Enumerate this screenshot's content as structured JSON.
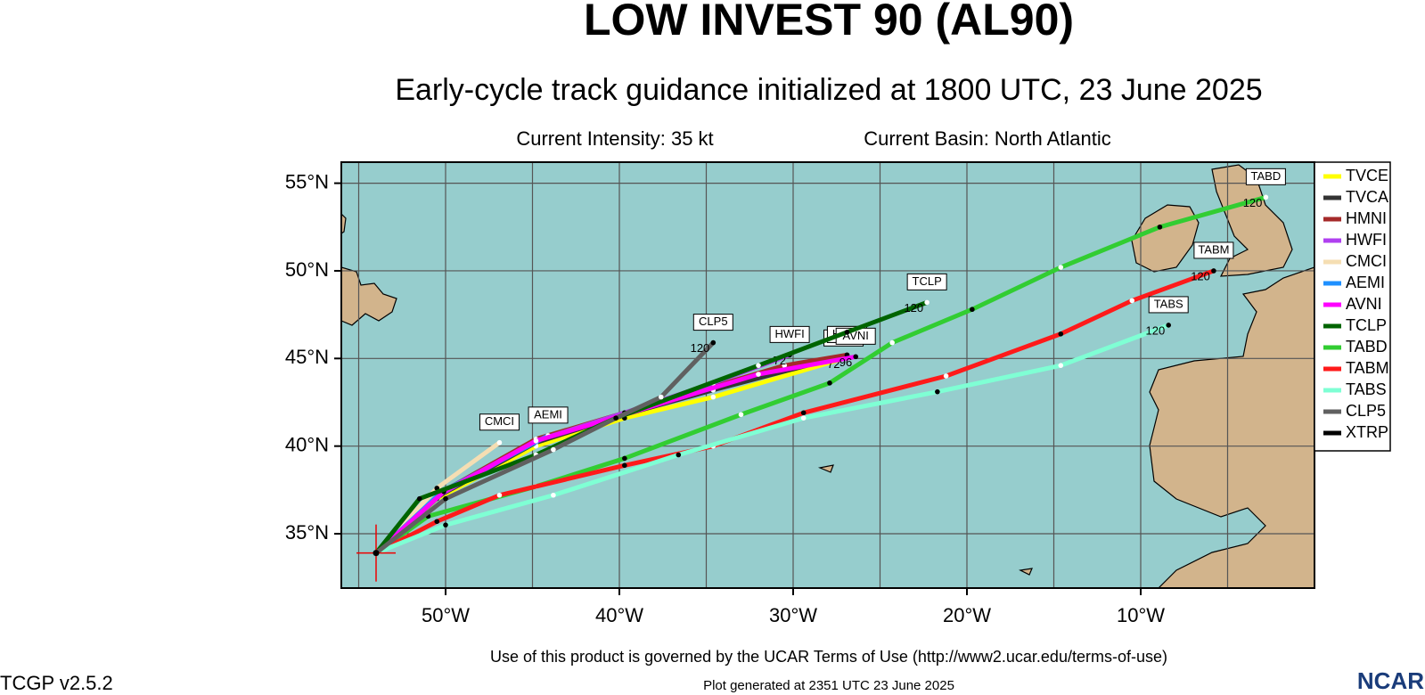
{
  "title": "LOW INVEST 90 (AL90)",
  "subtitle": "Early-cycle track guidance initialized at 1800 UTC, 23 June 2025",
  "intensity": "Current Intensity: 35 kt",
  "basin": "Current Basin: North Atlantic",
  "footer": {
    "terms": "Use of this product is governed by the UCAR Terms of Use (http://www2.ucar.edu/terms-of-use)",
    "generated": "Plot generated at 2351 UTC   23 June 2025",
    "version": "TCGP v2.5.2",
    "logo": "NCAR"
  },
  "map": {
    "xlim": [
      -56,
      0
    ],
    "ylim": [
      31.9,
      56.2
    ],
    "xticks": [
      {
        "value": -50,
        "label": "50°W"
      },
      {
        "value": -40,
        "label": "40°W"
      },
      {
        "value": -30,
        "label": "30°W"
      },
      {
        "value": -20,
        "label": "20°W"
      },
      {
        "value": -10,
        "label": "10°W"
      }
    ],
    "xminor": [
      -55,
      -45,
      -35,
      -25,
      -15,
      -5
    ],
    "yticks": [
      {
        "value": 35,
        "label": "35°N"
      },
      {
        "value": 40,
        "label": "40°N"
      },
      {
        "value": 45,
        "label": "45°N"
      },
      {
        "value": 50,
        "label": "50°N"
      },
      {
        "value": 55,
        "label": "55°N"
      }
    ],
    "current_position": {
      "lon": -54,
      "lat": 33.9
    },
    "series": [
      {
        "name": "TVCE",
        "color": "#ffff00",
        "lon": [
          -54,
          -50.5,
          -44.8,
          -39.7,
          -34.6,
          -27.1
        ],
        "lat": [
          33.9,
          37.0,
          40.0,
          41.6,
          42.8,
          45.0
        ],
        "end_hour": 72
      },
      {
        "name": "TVCA",
        "color": "#333333",
        "lon": [
          -54,
          -50.3,
          -44.8,
          -39.7,
          -34.6,
          -26.9
        ],
        "lat": [
          33.9,
          37.2,
          40.2,
          41.8,
          43.2,
          45.2
        ]
      },
      {
        "name": "HMNI",
        "color": "#a52a2a",
        "lon": [
          -54,
          -50.0,
          -44.8,
          -39.7,
          -30.5,
          -26.9
        ],
        "lat": [
          33.9,
          37.5,
          40.4,
          41.9,
          44.6,
          45.2
        ]
      },
      {
        "name": "HWFI",
        "color": "#b040f0",
        "lon": [
          -54,
          -50.2,
          -44.8,
          -39.7,
          -34.6,
          -30.2
        ],
        "lat": [
          33.9,
          37.3,
          40.3,
          41.9,
          43.6,
          45.2
        ],
        "end_hour": 72
      },
      {
        "name": "CMCI",
        "color": "#f5deb3",
        "lon": [
          -54,
          -50.5,
          -46.9
        ],
        "lat": [
          33.9,
          37.6,
          40.2
        ]
      },
      {
        "name": "AEMI",
        "color": "#1e90ff",
        "lon": [
          -54,
          -50.2,
          -44.1
        ],
        "lat": [
          33.9,
          37.4,
          40.6
        ]
      },
      {
        "name": "AVNI",
        "color": "#ff00ff",
        "lon": [
          -54,
          -50.1,
          -44.8,
          -39.7,
          -32.0,
          -26.4
        ],
        "lat": [
          33.9,
          37.4,
          40.3,
          41.8,
          44.1,
          45.1
        ],
        "end_hour": 96
      },
      {
        "name": "TCLP",
        "color": "#006400",
        "lon": [
          -54,
          -51.5,
          -44.8,
          -40.2,
          -32.0,
          -26.9,
          -22.3
        ],
        "lat": [
          33.9,
          37.0,
          39.5,
          41.6,
          44.6,
          46.5,
          48.2
        ],
        "end_hour": 120
      },
      {
        "name": "TABD",
        "color": "#32cd32",
        "lon": [
          -54,
          -51.0,
          -44.8,
          -39.7,
          -33.0,
          -27.9,
          -24.3,
          -19.7,
          -14.6,
          -8.9,
          -2.8
        ],
        "lat": [
          33.9,
          36.0,
          37.7,
          39.3,
          41.8,
          43.6,
          45.9,
          47.8,
          50.2,
          52.5,
          54.2
        ],
        "end_hour": 120
      },
      {
        "name": "TABM",
        "color": "#ff1a1a",
        "lon": [
          -54,
          -50.5,
          -46.9,
          -39.7,
          -34.6,
          -29.4,
          -21.2,
          -14.6,
          -10.5,
          -5.8
        ],
        "lat": [
          33.9,
          35.7,
          37.2,
          38.9,
          40.0,
          41.9,
          44.0,
          46.4,
          48.3,
          50.0
        ],
        "end_hour": 120
      },
      {
        "name": "TABS",
        "color": "#7fffd4",
        "lon": [
          -54,
          -50.0,
          -43.8,
          -36.6,
          -29.4,
          -21.7,
          -14.6,
          -8.4
        ],
        "lat": [
          33.9,
          35.5,
          37.2,
          39.5,
          41.6,
          43.1,
          44.6,
          46.9
        ],
        "end_hour": 120
      },
      {
        "name": "CLP5",
        "color": "#606060",
        "lon": [
          -54,
          -50.0,
          -43.8,
          -40.2,
          -37.6,
          -34.6
        ],
        "lat": [
          33.9,
          37.0,
          39.8,
          41.6,
          42.8,
          45.9
        ],
        "end_hour": 120
      },
      {
        "name": "XTRP",
        "color": "#000000",
        "lon": [
          -54
        ],
        "lat": [
          33.9
        ]
      }
    ]
  }
}
